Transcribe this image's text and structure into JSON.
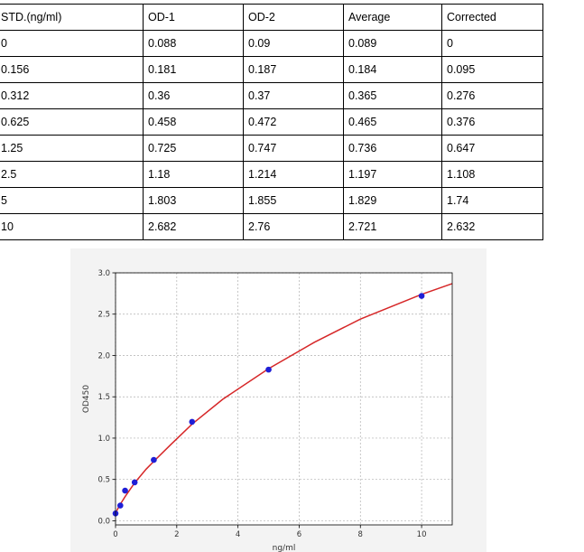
{
  "table": {
    "headers": [
      "STD.(ng/ml)",
      "OD-1",
      "OD-2",
      "Average",
      "Corrected"
    ],
    "rows": [
      [
        "0",
        "0.088",
        "0.09",
        "0.089",
        "0"
      ],
      [
        "0.156",
        "0.181",
        "0.187",
        "0.184",
        "0.095"
      ],
      [
        "0.312",
        "0.36",
        "0.37",
        "0.365",
        "0.276"
      ],
      [
        "0.625",
        "0.458",
        "0.472",
        "0.465",
        "0.376"
      ],
      [
        "1.25",
        "0.725",
        "0.747",
        "0.736",
        "0.647"
      ],
      [
        "2.5",
        "1.18",
        "1.214",
        "1.197",
        "1.108"
      ],
      [
        "5",
        "1.803",
        "1.855",
        "1.829",
        "1.74"
      ],
      [
        "10",
        "2.682",
        "2.76",
        "2.721",
        "2.632"
      ]
    ]
  },
  "chart_data": {
    "type": "scatter",
    "title": "",
    "xlabel": "ng/ml",
    "ylabel": "OD450",
    "xlim": [
      0,
      11
    ],
    "ylim": [
      -0.05,
      3.0
    ],
    "xticks": [
      "0",
      "2",
      "4",
      "6",
      "8",
      "10"
    ],
    "yticks": [
      "0.0",
      "0.5",
      "1.0",
      "1.5",
      "2.0",
      "2.5",
      "3.0"
    ],
    "grid": true,
    "points": {
      "x": [
        0,
        0.156,
        0.312,
        0.625,
        1.25,
        2.5,
        5,
        10
      ],
      "y": [
        0.089,
        0.184,
        0.365,
        0.465,
        0.736,
        1.197,
        1.829,
        2.721
      ]
    },
    "fit_curve": {
      "x": [
        0,
        0.08,
        0.156,
        0.312,
        0.625,
        1,
        1.25,
        1.8,
        2.5,
        3.5,
        5,
        6.5,
        8,
        10,
        11
      ],
      "y": [
        0.089,
        0.15,
        0.2,
        0.292,
        0.458,
        0.625,
        0.72,
        0.92,
        1.17,
        1.47,
        1.84,
        2.16,
        2.44,
        2.74,
        2.87
      ]
    },
    "colors": {
      "points": "#1f1fd6",
      "curve": "#d62728",
      "grid": "#b0b0b0"
    }
  }
}
